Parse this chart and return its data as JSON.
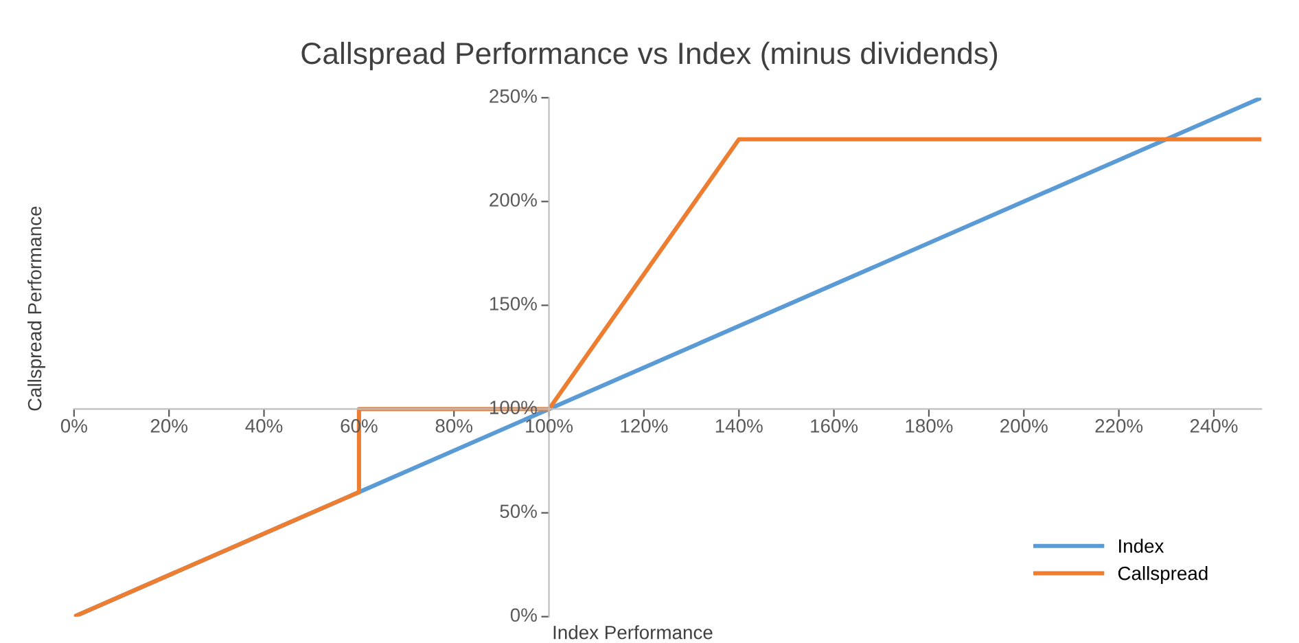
{
  "chart_data": {
    "type": "line",
    "title": "Callspread Performance vs Index (minus dividends)",
    "xlabel": "Index Performance",
    "ylabel": "Callspread Performance",
    "series": [
      {
        "name": "Index",
        "color": "#5b9bd5",
        "x": [
          0,
          250
        ],
        "values": [
          0,
          250
        ]
      },
      {
        "name": "Callspread",
        "color": "#ed7d31",
        "x": [
          0,
          60,
          60,
          100,
          140,
          250
        ],
        "values": [
          0,
          60,
          100,
          100,
          230,
          230
        ]
      }
    ],
    "xlim": [
      0,
      250
    ],
    "ylim": [
      0,
      250
    ],
    "xticks": [
      {
        "value": 0,
        "label": "0%"
      },
      {
        "value": 20,
        "label": "20%"
      },
      {
        "value": 40,
        "label": "40%"
      },
      {
        "value": 60,
        "label": "60%"
      },
      {
        "value": 80,
        "label": "80%"
      },
      {
        "value": 100,
        "label": "100%"
      },
      {
        "value": 120,
        "label": "120%"
      },
      {
        "value": 140,
        "label": "140%"
      },
      {
        "value": 160,
        "label": "160%"
      },
      {
        "value": 180,
        "label": "180%"
      },
      {
        "value": 200,
        "label": "200%"
      },
      {
        "value": 220,
        "label": "220%"
      },
      {
        "value": 240,
        "label": "240%"
      }
    ],
    "yticks": [
      {
        "value": 0,
        "label": "0%"
      },
      {
        "value": 50,
        "label": "50%"
      },
      {
        "value": 100,
        "label": "100%"
      },
      {
        "value": 150,
        "label": "150%"
      },
      {
        "value": 200,
        "label": "200%"
      },
      {
        "value": 250,
        "label": "250%"
      }
    ],
    "legend": "bottom right",
    "grid": false,
    "marker": "none",
    "line_style": "solid"
  }
}
